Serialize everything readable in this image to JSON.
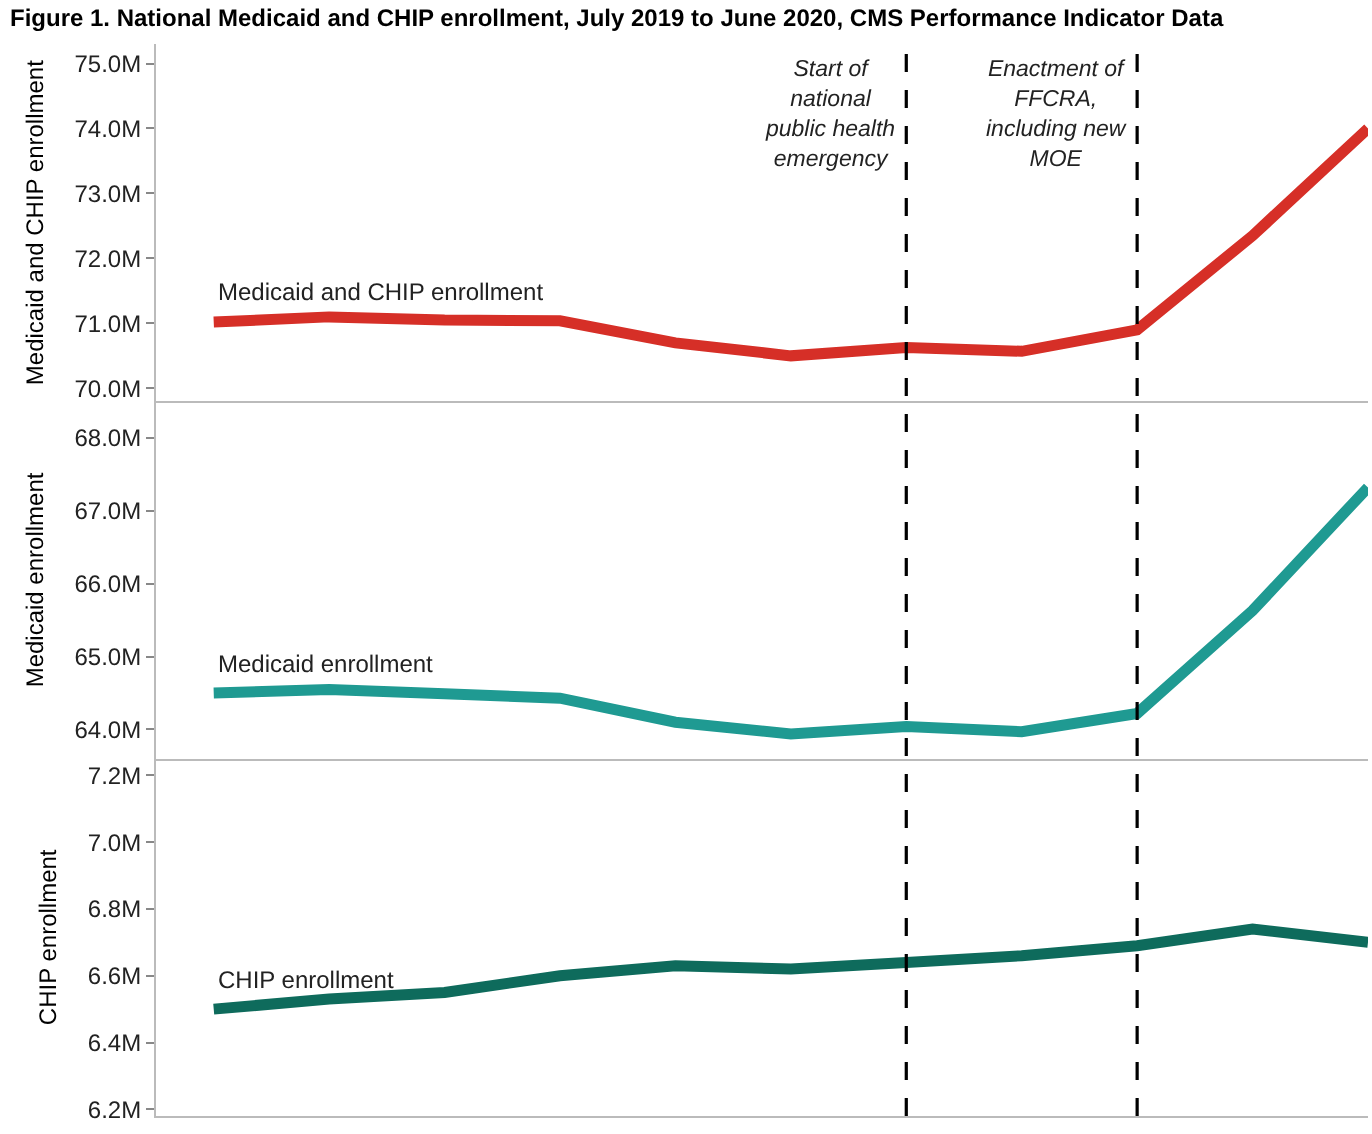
{
  "chart_data": [
    {
      "type": "line",
      "title": "Figure 1. National Medicaid and CHIP enrollment, July 2019 to June 2020, CMS Performance Indicator Data",
      "ylabel": "Medicaid and CHIP enrollment",
      "categories": [
        null,
        null,
        null,
        null,
        null,
        null,
        null,
        null,
        null,
        null,
        null
      ],
      "series": [
        {
          "name": "Medicaid and CHIP enrollment",
          "color": "#d62f27",
          "values": [
            71.02,
            71.1,
            71.05,
            71.04,
            70.7,
            70.5,
            70.63,
            70.57,
            70.9,
            72.35,
            74.0
          ]
        }
      ],
      "ylim": [
        69.8,
        75.3
      ],
      "yticks": [
        {
          "value": 70,
          "label": "70.0M"
        },
        {
          "value": 71,
          "label": "71.0M"
        },
        {
          "value": 72,
          "label": "72.0M"
        },
        {
          "value": 73,
          "label": "73.0M"
        },
        {
          "value": 74,
          "label": "74.0M"
        },
        {
          "value": 75,
          "label": "75.0M"
        }
      ],
      "annotations": [
        "Start of\nnational\npublic health\nemergency",
        "Enactment of\nFFCRA,\nincluding new\nMOE"
      ],
      "tick_labels": "y",
      "legend": false,
      "marker": "none",
      "line_style": "solid"
    },
    {
      "type": "line",
      "ylabel": "Medicaid enrollment",
      "categories": [
        null,
        null,
        null,
        null,
        null,
        null,
        null,
        null,
        null,
        null,
        null
      ],
      "series": [
        {
          "name": "Medicaid enrollment",
          "color": "#1f9a92",
          "values": [
            64.5,
            64.55,
            64.49,
            64.43,
            64.1,
            63.94,
            64.04,
            63.97,
            64.22,
            65.63,
            67.32
          ]
        }
      ],
      "ylim": [
        63.6,
        68.5
      ],
      "yticks": [
        {
          "value": 64,
          "label": "64.0M"
        },
        {
          "value": 65,
          "label": "65.0M"
        },
        {
          "value": 66,
          "label": "66.0M"
        },
        {
          "value": 67,
          "label": "67.0M"
        },
        {
          "value": 68,
          "label": "68.0M"
        }
      ],
      "tick_labels": "y",
      "legend": false,
      "marker": "none",
      "line_style": "solid"
    },
    {
      "type": "line",
      "ylabel": "CHIP enrollment",
      "categories": [
        null,
        null,
        null,
        null,
        null,
        null,
        null,
        null,
        null,
        null,
        null
      ],
      "series": [
        {
          "name": "CHIP enrollment",
          "color": "#0e6b5c",
          "values": [
            6.5,
            6.53,
            6.55,
            6.6,
            6.63,
            6.62,
            6.64,
            6.66,
            6.69,
            6.74,
            6.7
          ]
        }
      ],
      "ylim": [
        6.18,
        7.25
      ],
      "yticks": [
        {
          "value": 6.2,
          "label": "6.2M"
        },
        {
          "value": 6.4,
          "label": "6.4M"
        },
        {
          "value": 6.6,
          "label": "6.6M"
        },
        {
          "value": 6.8,
          "label": "6.8M"
        },
        {
          "value": 7.0,
          "label": "7.0M"
        },
        {
          "value": 7.2,
          "label": "7.2M"
        }
      ],
      "tick_labels": "y",
      "legend": false,
      "marker": "none",
      "line_style": "solid"
    }
  ]
}
